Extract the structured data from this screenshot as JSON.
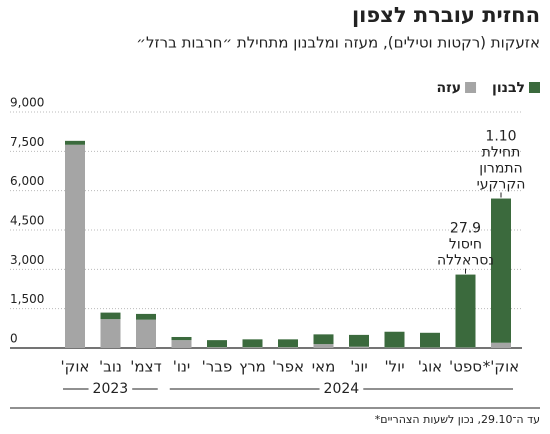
{
  "chart_data": {
    "type": "stacked-bar",
    "title": "החזית עוברת לצפון",
    "subtitle": "אזעקות (רקטות וטילים), מעזה ומלבנון מתחילת ״חרבות ברזל״",
    "categories": [
      "אוק'",
      "נוב'",
      "דצמ'",
      "ינו'",
      "פבר'",
      "מרץ",
      "אפר'",
      "מאי",
      "יונ'",
      "יול'",
      "אוג'",
      "ספט'",
      "אוק'*"
    ],
    "years": [
      "2023",
      "2024"
    ],
    "series": [
      {
        "name": "עזה",
        "color": "#a5a5a5",
        "values": [
          7750,
          1100,
          1080,
          300,
          30,
          30,
          30,
          150,
          50,
          20,
          20,
          20,
          200
        ]
      },
      {
        "name": "לבנון",
        "color": "#3b6a3d",
        "values": [
          150,
          250,
          220,
          120,
          270,
          300,
          300,
          370,
          450,
          600,
          560,
          2780,
          5500
        ]
      }
    ],
    "ylim": [
      0,
      9000
    ],
    "yticks": [
      0,
      {
        "value": 1500,
        "label": "1,500"
      },
      {
        "value": 3000,
        "label": "3,000"
      },
      {
        "value": 4500,
        "label": "4,500"
      },
      {
        "value": 6000,
        "label": "6,000"
      },
      {
        "value": 7500,
        "label": "7,500"
      },
      {
        "value": 9000,
        "label": "9,000"
      }
    ],
    "grid": true,
    "annotations": [
      {
        "lines": [
          "27.9",
          "חיסול",
          "נסראללה"
        ]
      },
      {
        "lines": [
          "1.10",
          "תחילת",
          "התמרון",
          "הקרקעי"
        ]
      }
    ],
    "footnote": "*עד ה־29.10, נכון לשעות הצהריים"
  }
}
